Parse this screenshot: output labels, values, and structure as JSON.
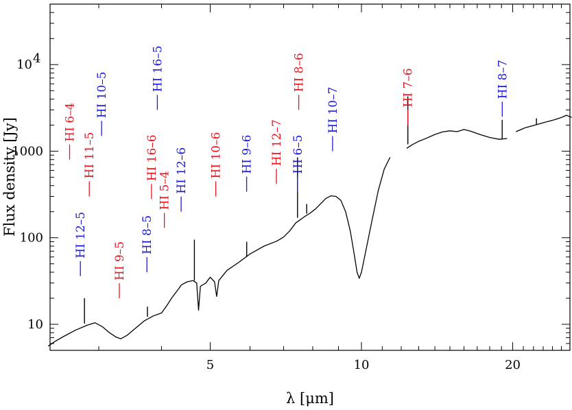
{
  "chart_data": {
    "type": "line",
    "xlabel": "λ [μm]",
    "ylabel": "Flux density [Jy]",
    "x_scale": "log",
    "y_scale": "log",
    "xlim": [
      2.4,
      26
    ],
    "ylim": [
      5,
      50000
    ],
    "x_ticks": [
      {
        "value": 5,
        "label": "5"
      },
      {
        "value": 10,
        "label": "10"
      },
      {
        "value": 20,
        "label": "20"
      }
    ],
    "y_ticks": [
      {
        "value": 10,
        "label": "10"
      },
      {
        "value": 100,
        "label": "100"
      },
      {
        "value": 1000,
        "label": "1000"
      },
      {
        "value": 10000,
        "label": "10",
        "sup": "4"
      }
    ],
    "colors": {
      "red": "#e8141e",
      "blue": "#1a1adc",
      "black": "#000000"
    },
    "spectrum": [
      [
        2.38,
        5.6
      ],
      [
        2.45,
        6.3
      ],
      [
        2.55,
        7.2
      ],
      [
        2.7,
        8.6
      ],
      [
        2.85,
        9.8
      ],
      [
        2.95,
        10.4
      ],
      [
        3.05,
        9.4
      ],
      [
        3.15,
        8.0
      ],
      [
        3.25,
        7.1
      ],
      [
        3.32,
        6.8
      ],
      [
        3.42,
        7.5
      ],
      [
        3.55,
        9.0
      ],
      [
        3.7,
        11.0
      ],
      [
        3.85,
        12.5
      ],
      [
        4.0,
        13.5
      ],
      [
        4.1,
        16.5
      ],
      [
        4.2,
        20.5
      ],
      [
        4.3,
        24.5
      ],
      [
        4.38,
        28.5
      ],
      [
        4.5,
        31.0
      ],
      [
        4.62,
        32.0
      ],
      [
        4.7,
        30.0
      ],
      [
        4.74,
        14.5
      ],
      [
        4.78,
        27.5
      ],
      [
        4.9,
        30.0
      ],
      [
        5.0,
        35.0
      ],
      [
        5.1,
        31.0
      ],
      [
        5.15,
        21.0
      ],
      [
        5.2,
        32.0
      ],
      [
        5.4,
        42.0
      ],
      [
        5.7,
        52.0
      ],
      [
        6.0,
        65.0
      ],
      [
        6.4,
        80.0
      ],
      [
        6.8,
        92.0
      ],
      [
        7.0,
        102.0
      ],
      [
        7.2,
        120.0
      ],
      [
        7.4,
        148.0
      ],
      [
        7.7,
        175.0
      ],
      [
        7.9,
        192.0
      ],
      [
        8.1,
        215.0
      ],
      [
        8.3,
        248.0
      ],
      [
        8.5,
        285.0
      ],
      [
        8.7,
        305.0
      ],
      [
        8.9,
        300.0
      ],
      [
        9.1,
        270.0
      ],
      [
        9.3,
        200.0
      ],
      [
        9.5,
        120.0
      ],
      [
        9.65,
        70.0
      ],
      [
        9.8,
        40.0
      ],
      [
        9.9,
        34.0
      ],
      [
        10.0,
        40.0
      ],
      [
        10.2,
        70.0
      ],
      [
        10.5,
        160.0
      ],
      [
        10.8,
        350.0
      ],
      [
        11.1,
        620.0
      ],
      [
        11.4,
        850.0
      ],
      null,
      [
        12.3,
        1080.0
      ],
      [
        12.6,
        1180.0
      ],
      [
        13.0,
        1300.0
      ],
      [
        13.5,
        1420.0
      ],
      [
        14.0,
        1560.0
      ],
      [
        14.5,
        1670.0
      ],
      [
        15.0,
        1720.0
      ],
      [
        15.5,
        1680.0
      ],
      [
        16.0,
        1780.0
      ],
      [
        16.5,
        1700.0
      ],
      [
        17.2,
        1560.0
      ],
      [
        18.0,
        1440.0
      ],
      [
        18.8,
        1370.0
      ],
      [
        19.5,
        1400.0
      ],
      null,
      [
        20.3,
        1680.0
      ],
      [
        21.2,
        1870.0
      ],
      [
        22.2,
        2010.0
      ],
      [
        23.2,
        2160.0
      ],
      [
        24.2,
        2300.0
      ],
      [
        25.0,
        2450.0
      ],
      [
        25.6,
        2600.0
      ],
      [
        25.9,
        2520.0
      ],
      [
        26.2,
        2460.0
      ]
    ],
    "emission_spikes": [
      [
        2.81,
        10.2,
        20.0
      ],
      [
        3.75,
        12.2,
        16.0
      ],
      [
        4.65,
        32.0,
        95.0
      ],
      [
        5.91,
        60.0,
        90.0
      ],
      [
        7.46,
        170.0,
        850.0
      ],
      [
        7.78,
        190.0,
        245.0
      ],
      [
        12.37,
        1200.0,
        4300.0
      ],
      [
        19.06,
        1380.0,
        2300.0
      ],
      [
        22.3,
        2000.0,
        2400.0
      ]
    ],
    "line_labels": [
      {
        "text": "HI 6–4",
        "color": "red",
        "wavelength": 2.625,
        "flux": 800.0
      },
      {
        "text": "HI 12–5",
        "color": "blue",
        "wavelength": 2.758,
        "flux": 36.0
      },
      {
        "text": "HI 11–5",
        "color": "red",
        "wavelength": 2.873,
        "flux": 300.0
      },
      {
        "text": "HI 10–5",
        "color": "blue",
        "wavelength": 3.039,
        "flux": 1500.0
      },
      {
        "text": "HI 9–5",
        "color": "red",
        "wavelength": 3.297,
        "flux": 20.0
      },
      {
        "text": "HI 8–5",
        "color": "blue",
        "wavelength": 3.741,
        "flux": 40.0
      },
      {
        "text": "HI 16–6",
        "color": "red",
        "wavelength": 3.821,
        "flux": 280.0
      },
      {
        "text": "HI 16–5",
        "color": "blue",
        "wavelength": 3.924,
        "flux": 3000.0
      },
      {
        "text": "HI 5–4",
        "color": "red",
        "wavelength": 4.052,
        "flux": 130.0
      },
      {
        "text": "HI 12–6",
        "color": "blue",
        "wavelength": 4.376,
        "flux": 200.0
      },
      {
        "text": "HI 10–6",
        "color": "red",
        "wavelength": 5.129,
        "flux": 300.0
      },
      {
        "text": "HI 9–6",
        "color": "blue",
        "wavelength": 5.908,
        "flux": 340.0
      },
      {
        "text": "HI 12–7",
        "color": "red",
        "wavelength": 6.772,
        "flux": 420.0
      },
      {
        "text": "HI 6–5",
        "color": "blue",
        "wavelength": 7.46,
        "flux": 340.0
      },
      {
        "text": "HI 8–6",
        "color": "red",
        "wavelength": 7.502,
        "flux": 3000.0
      },
      {
        "text": "HI 10–7",
        "color": "blue",
        "wavelength": 8.76,
        "flux": 1000.0
      },
      {
        "text": "HI 7–6",
        "color": "red",
        "wavelength": 12.372,
        "flux": 2000.0
      },
      {
        "text": "HI 8–7",
        "color": "blue",
        "wavelength": 19.062,
        "flux": 2500.0
      }
    ]
  }
}
